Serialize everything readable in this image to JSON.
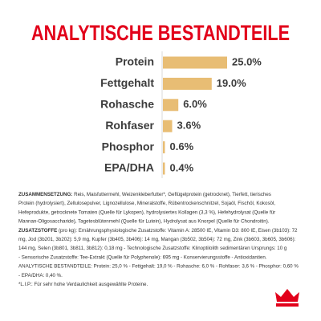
{
  "chart_data": {
    "type": "bar",
    "orientation": "horizontal",
    "title": "ANALYTISCHE BESTANDTEILE",
    "categories": [
      "Protein",
      "Fettgehalt",
      "Rohasche",
      "Rohfaser",
      "Phosphor",
      "EPA/DHA"
    ],
    "values": [
      25.0,
      19.0,
      6.0,
      3.6,
      0.6,
      0.4
    ],
    "value_labels": [
      "25.0%",
      "19.0%",
      "6.0%",
      "3.6%",
      "0.6%",
      "0.4%"
    ],
    "color": "#e8bd74"
  },
  "composition": {
    "lines": [
      {
        "bold": "ZUSAMMENSETZUNG:",
        "text": " Reis, Maisfuttermehl, Weizenkleberfutter*, Geflügelprotein (getrocknet), Tierfett, tierisches"
      },
      {
        "text": "Protein (hydrolysiert), Zellulosepulver, Lignozellulose, Mineralstoffe, Rübentrockenschnitzel, Sojaöl, Fischöl, Kokosöl,"
      },
      {
        "text": "Hefeprodukte, getrocknete Tomaten (Quelle für Lykopen), hydrolysiertes Kollagen (3,3 %), Hefehydrolysat (Quelle für"
      },
      {
        "text": "Mannan-Oligosaccharide), Tagetesblütenmehl (Quelle für Lutein), Hydrolysat aus Knorpel (Quelle für Chondroitin)."
      },
      {
        "bold": "ZUSATZSTOFFE",
        "text": " (pro kg): Ernährungsphysiologische Zusatzstoffe: Vitamin A: 28500 IE, Vitamin D3: 800 IE, Eisen (3b103): 72"
      },
      {
        "text": "mg, Jod (3b201, 3b202): 5,9 mg, Kupfer (3b405, 3b406): 14 mg, Mangan (3b502, 3b504): 72 mg, Zink (3b603, 3b605, 3b606):"
      },
      {
        "text": "144 mg, Selen (3b801, 3b811, 3b812): 0,18 mg - Technologische Zusatzstoffe: Klinoptilolith sedimentären Ursprungs: 10 g"
      },
      {
        "text": "- Sensorische Zusatzstoffe: Tee-Extrakt (Quelle für Polyphenole): 695 mg - Konservierungsstoffe - Antioxidantien."
      },
      {
        "text": "ANALYTISCHE BESTANDTEILE: Protein: 25,0 % - Fettgehalt: 19,0 % - Rohasche: 6,0 % - Rohfaser: 3,6 % - Phosphor: 0,60 %"
      },
      {
        "text": "- EPA/DHA: 0,40 %."
      },
      {
        "text": "*L.I.P.: Für sehr hohe Verdaulichkeit ausgewählte Proteine."
      }
    ]
  }
}
